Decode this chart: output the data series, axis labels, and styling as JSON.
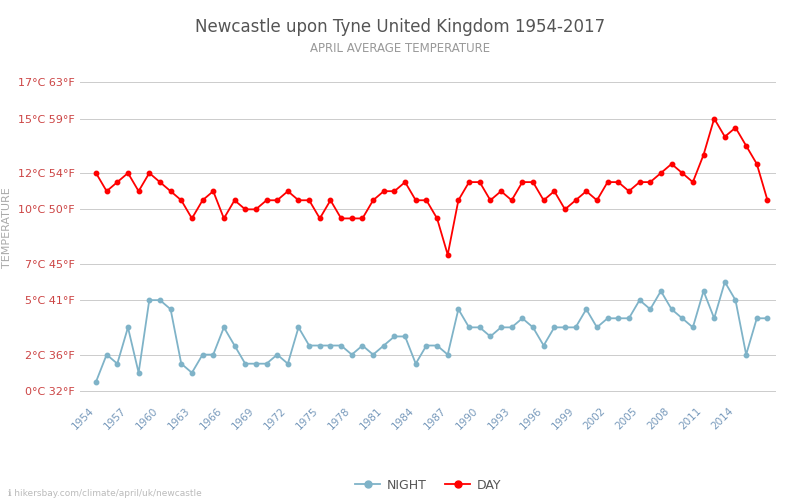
{
  "title": "Newcastle upon Tyne United Kingdom 1954-2017",
  "subtitle": "APRIL AVERAGE TEMPERATURE",
  "ylabel": "TEMPERATURE",
  "website": "hikersbay.com/climate/april/uk/newcastle",
  "years": [
    1954,
    1955,
    1956,
    1957,
    1958,
    1959,
    1960,
    1961,
    1962,
    1963,
    1964,
    1965,
    1966,
    1967,
    1968,
    1969,
    1970,
    1971,
    1972,
    1973,
    1974,
    1975,
    1976,
    1977,
    1978,
    1979,
    1980,
    1981,
    1982,
    1983,
    1984,
    1985,
    1986,
    1987,
    1988,
    1989,
    1990,
    1991,
    1992,
    1993,
    1994,
    1995,
    1996,
    1997,
    1998,
    1999,
    2000,
    2001,
    2002,
    2003,
    2004,
    2005,
    2006,
    2007,
    2008,
    2009,
    2010,
    2011,
    2012,
    2013,
    2014,
    2015,
    2016,
    2017
  ],
  "day": [
    12.0,
    11.0,
    11.5,
    12.0,
    11.0,
    12.0,
    11.5,
    11.0,
    10.5,
    9.5,
    10.5,
    11.0,
    9.5,
    10.5,
    10.0,
    10.0,
    10.5,
    10.5,
    11.0,
    10.5,
    10.5,
    9.5,
    10.5,
    9.5,
    9.5,
    9.5,
    10.5,
    11.0,
    11.0,
    11.5,
    10.5,
    10.5,
    9.5,
    7.5,
    10.5,
    11.5,
    11.5,
    10.5,
    11.0,
    10.5,
    11.5,
    11.5,
    10.5,
    11.0,
    10.0,
    10.5,
    11.0,
    10.5,
    11.5,
    11.5,
    11.0,
    11.5,
    11.5,
    12.0,
    12.5,
    12.0,
    11.5,
    13.0,
    15.0,
    14.0,
    14.5,
    13.5,
    12.5,
    10.5
  ],
  "night": [
    0.5,
    2.0,
    1.5,
    3.5,
    1.0,
    5.0,
    5.0,
    4.5,
    1.5,
    1.0,
    2.0,
    2.0,
    3.5,
    2.5,
    1.5,
    1.5,
    1.5,
    2.0,
    1.5,
    3.5,
    2.5,
    2.5,
    2.5,
    2.5,
    2.0,
    2.5,
    2.0,
    2.5,
    3.0,
    3.0,
    1.5,
    2.5,
    2.5,
    2.0,
    4.5,
    3.5,
    3.5,
    3.0,
    3.5,
    3.5,
    4.0,
    3.5,
    2.5,
    3.5,
    3.5,
    3.5,
    4.5,
    3.5,
    4.0,
    4.0,
    4.0,
    5.0,
    4.5,
    5.5,
    4.5,
    4.0,
    3.5,
    5.5,
    4.0,
    6.0,
    5.0,
    2.0,
    4.0,
    4.0
  ],
  "day_color": "#ff0000",
  "night_color": "#7fb3c8",
  "bg_color": "#ffffff",
  "grid_color": "#cccccc",
  "title_color": "#555555",
  "subtitle_color": "#999999",
  "ylabel_color": "#aaaaaa",
  "ytick_color": "#cc4444",
  "xtick_color": "#7799bb",
  "yticks_c": [
    0,
    2,
    5,
    7,
    10,
    12,
    15,
    17
  ],
  "yticks_f": [
    32,
    36,
    41,
    45,
    50,
    54,
    59,
    63
  ],
  "ylim": [
    -0.5,
    18.5
  ],
  "xlim": [
    1952.5,
    2017.8
  ],
  "xtick_years": [
    1954,
    1957,
    1960,
    1963,
    1966,
    1969,
    1972,
    1975,
    1978,
    1981,
    1984,
    1987,
    1990,
    1993,
    1996,
    1999,
    2002,
    2005,
    2008,
    2011,
    2014
  ]
}
